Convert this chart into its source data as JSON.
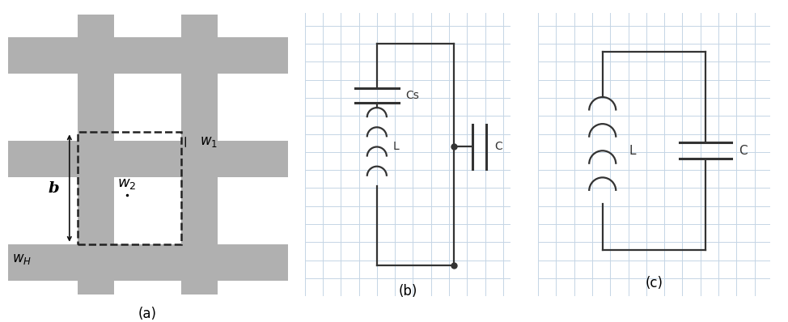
{
  "fig_width": 9.74,
  "fig_height": 3.98,
  "dpi": 100,
  "bg_color": "#ffffff",
  "gray_color": "#b0b0b0",
  "grid_color": "#c5d5e5",
  "circuit_line_color": "#333333",
  "circuit_lw": 1.6,
  "label_a": "(a)",
  "label_b": "(b)",
  "label_c": "(c)"
}
